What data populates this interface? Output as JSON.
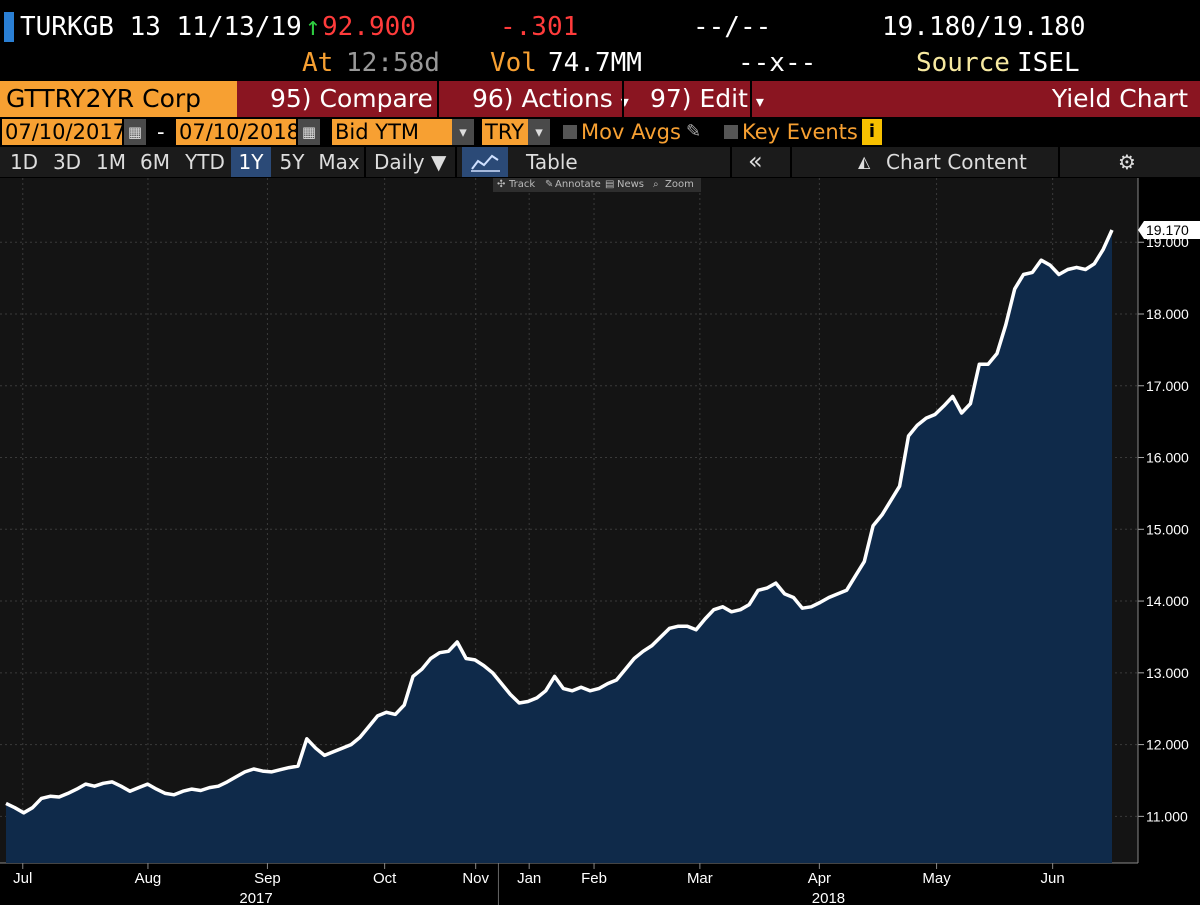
{
  "header": {
    "security": "TURKGB 13 11/13/19",
    "arrow": "↑",
    "price": "92.900",
    "change": "-.301",
    "dash1": "--/--",
    "bid_ask": "19.180/19.180",
    "at_label": "At",
    "time": "12:58d",
    "vol_label": "Vol",
    "volume": "74.7MM",
    "dash2": "--x--",
    "source_label": "Source",
    "source": "ISEL"
  },
  "toolbar": {
    "security": "GTTRY2YR Corp",
    "compare": "95) Compare",
    "actions": "96) Actions",
    "edit": "97) Edit",
    "title": "Yield Chart",
    "dropdown_glyph": "▾"
  },
  "controls": {
    "start_date": "07/10/2017",
    "dash": "-",
    "end_date": "07/10/2018",
    "field": "Bid YTM",
    "currency": "TRY",
    "mov_avgs": "Mov Avgs",
    "key_events": "Key Events",
    "info": "i",
    "dropdown_glyph": "▾"
  },
  "tabs": {
    "ranges": [
      "1D",
      "3D",
      "1M",
      "6M",
      "YTD",
      "1Y",
      "5Y",
      "Max"
    ],
    "active": "1Y",
    "frequency": "Daily ▼",
    "table": "Table",
    "collapse": "«",
    "chart_content": "Chart Content",
    "settings_glyph": "⚙"
  },
  "mini_tools": [
    "Track",
    "Annotate",
    "News",
    "Zoom"
  ],
  "colors": {
    "background": "#000000",
    "plot_bg": "#141414",
    "area_fill": "#0f2a4a",
    "line": "#ffffff",
    "accent_orange": "#f7a032",
    "toolbar_red": "#8a1521",
    "up_green": "#2ecc40",
    "down_red": "#ff3b3b"
  },
  "chart_data": {
    "type": "area",
    "series": [
      {
        "values": [
          11.18,
          11.12,
          11.05,
          11.12,
          11.25,
          11.28,
          11.27,
          11.32,
          11.38,
          11.45,
          11.42,
          11.46,
          11.48,
          11.42,
          11.35,
          11.4,
          11.45,
          11.38,
          11.32,
          11.3,
          11.35,
          11.38,
          11.36,
          11.4,
          11.42,
          11.48,
          11.55,
          11.62,
          11.66,
          11.63,
          11.62,
          11.65,
          11.68,
          11.7,
          12.08,
          11.95,
          11.85,
          11.9,
          11.95,
          12.0,
          12.1,
          12.25,
          12.4,
          12.45,
          12.42,
          12.55,
          12.95,
          13.05,
          13.2,
          13.28,
          13.3,
          13.43,
          13.2,
          13.18,
          13.1,
          13.0,
          12.85,
          12.7,
          12.58,
          12.6,
          12.65,
          12.75,
          12.95,
          12.78,
          12.75,
          12.8,
          12.75,
          12.78,
          12.85,
          12.9,
          13.05,
          13.2,
          13.3,
          13.38,
          13.5,
          13.62,
          13.65,
          13.65,
          13.6,
          13.75,
          13.88,
          13.92,
          13.85,
          13.88,
          13.95,
          14.15,
          14.18,
          14.25,
          14.1,
          14.05,
          13.9,
          13.92,
          13.98,
          14.05,
          14.1,
          14.15,
          14.35,
          14.55,
          15.05,
          15.2,
          15.4,
          15.6,
          16.3,
          16.45,
          16.55,
          16.6,
          16.72,
          16.85,
          16.62,
          16.75,
          17.3,
          17.3,
          17.45,
          17.85,
          18.35,
          18.55,
          18.58,
          18.75,
          18.68,
          18.55,
          18.62,
          18.65,
          18.62,
          18.7,
          18.9,
          19.17
        ]
      }
    ],
    "last_value_label": "19.170",
    "x_ticks": [
      {
        "label": "Jul",
        "pos": 0.02
      },
      {
        "label": "Aug",
        "pos": 0.13
      },
      {
        "label": "Sep",
        "pos": 0.235
      },
      {
        "label": "Oct",
        "pos": 0.338
      },
      {
        "label": "Nov",
        "pos": 0.418
      },
      {
        "label": "Jan",
        "pos": 0.465
      },
      {
        "label": "Feb",
        "pos": 0.522
      },
      {
        "label": "Mar",
        "pos": 0.615
      },
      {
        "label": "Apr",
        "pos": 0.72
      },
      {
        "label": "May",
        "pos": 0.823
      },
      {
        "label": "Jun",
        "pos": 0.925
      }
    ],
    "year_labels": [
      {
        "label": "2017",
        "pos": 0.225
      },
      {
        "label": "2018",
        "pos": 0.728
      }
    ],
    "y_ticks": [
      "11.000",
      "12.000",
      "13.000",
      "14.000",
      "15.000",
      "16.000",
      "17.000",
      "18.000",
      "19.000"
    ],
    "ylim": [
      10.35,
      19.7
    ],
    "grid": true,
    "axis_position": "right"
  }
}
